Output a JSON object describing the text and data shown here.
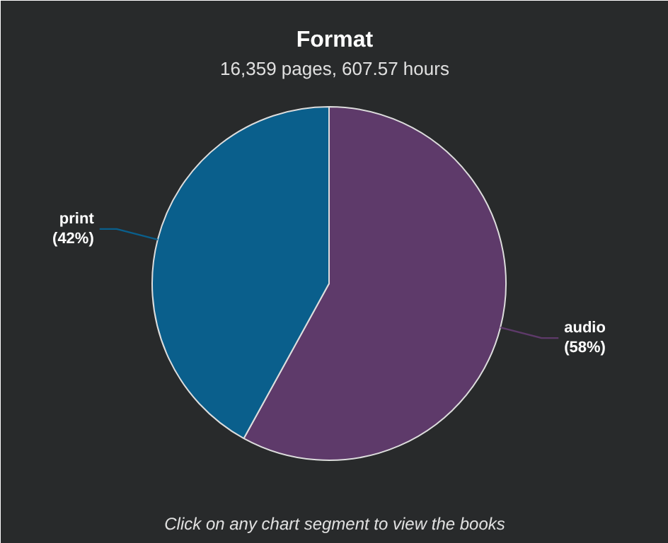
{
  "chart_data": {
    "type": "pie",
    "title": "Format",
    "subtitle": "16,359 pages, 607.57 hours",
    "categories": [
      "audio",
      "print"
    ],
    "values": [
      58,
      42
    ],
    "value_labels": [
      "(58%)",
      "(42%)"
    ],
    "colors": [
      "#5e3a6a",
      "#0a5f8c"
    ],
    "annotations": [
      "Click on any chart segment to view the books"
    ]
  }
}
